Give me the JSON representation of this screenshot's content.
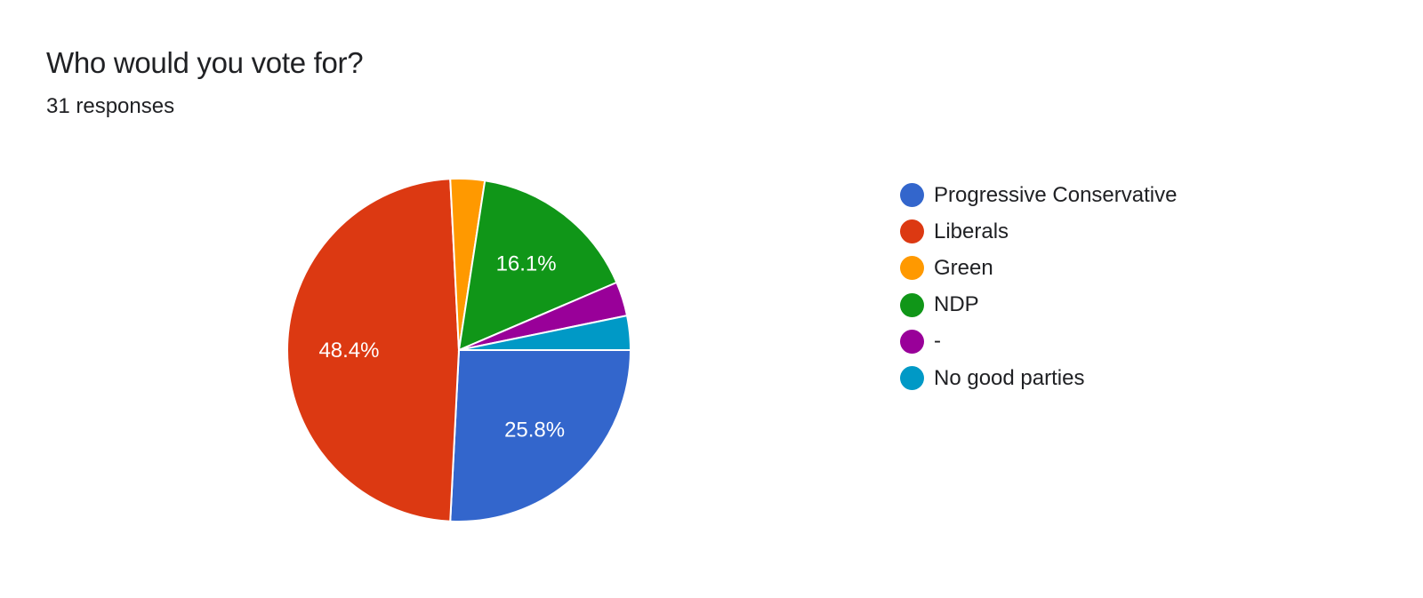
{
  "title": "Who would you vote for?",
  "subtitle": "31 responses",
  "chart_data": {
    "type": "pie",
    "title": "Who would you vote for?",
    "subtitle": "31 responses",
    "total": 31,
    "legend_position": "right",
    "slices": [
      {
        "name": "Progressive Conservative",
        "count": 8,
        "percent": 25.8,
        "label": "25.8%",
        "color": "#3366cc"
      },
      {
        "name": "Liberals",
        "count": 15,
        "percent": 48.4,
        "label": "48.4%",
        "color": "#dc3912"
      },
      {
        "name": "Green",
        "count": 1,
        "percent": 3.2,
        "label": "",
        "color": "#ff9900"
      },
      {
        "name": "NDP",
        "count": 5,
        "percent": 16.1,
        "label": "16.1%",
        "color": "#109618"
      },
      {
        "name": "-",
        "count": 1,
        "percent": 3.2,
        "label": "",
        "color": "#990099"
      },
      {
        "name": "No good parties",
        "count": 1,
        "percent": 3.2,
        "label": "",
        "color": "#0099c6"
      }
    ]
  }
}
